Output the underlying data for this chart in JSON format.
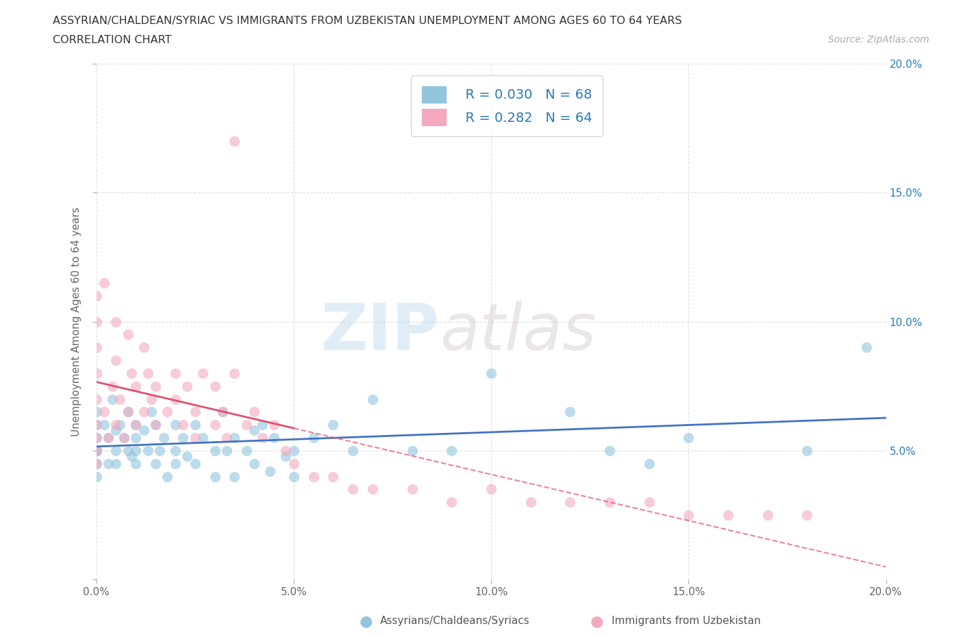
{
  "title_line1": "ASSYRIAN/CHALDEAN/SYRIAC VS IMMIGRANTS FROM UZBEKISTAN UNEMPLOYMENT AMONG AGES 60 TO 64 YEARS",
  "title_line2": "CORRELATION CHART",
  "source_text": "Source: ZipAtlas.com",
  "ylabel": "Unemployment Among Ages 60 to 64 years",
  "xlim": [
    0.0,
    0.2
  ],
  "ylim": [
    0.0,
    0.2
  ],
  "xtick_labels": [
    "0.0%",
    "5.0%",
    "10.0%",
    "15.0%",
    "20.0%"
  ],
  "xtick_vals": [
    0.0,
    0.05,
    0.1,
    0.15,
    0.2
  ],
  "ytick_vals": [
    0.0,
    0.05,
    0.1,
    0.15,
    0.2
  ],
  "right_ytick_labels": [
    "",
    "5.0%",
    "10.0%",
    "15.0%",
    "20.0%"
  ],
  "watermark_zip": "ZIP",
  "watermark_atlas": "atlas",
  "legend_R1": "R = 0.030",
  "legend_N1": "N = 68",
  "legend_R2": "R = 0.282",
  "legend_N2": "N = 64",
  "color_blue": "#92C5DE",
  "color_pink": "#F4A9BE",
  "label1": "Assyrians/Chaldeans/Syriacs",
  "label2": "Immigrants from Uzbekistan",
  "background_color": "#ffffff",
  "grid_color": "#e0e0e0",
  "title_color": "#333333",
  "blue_trend_color": "#4472C4",
  "pink_trend_color": "#E05070",
  "blue_x": [
    0.0,
    0.0,
    0.0,
    0.0,
    0.0,
    0.0,
    0.0,
    0.0,
    0.002,
    0.003,
    0.003,
    0.004,
    0.005,
    0.005,
    0.005,
    0.006,
    0.007,
    0.008,
    0.008,
    0.009,
    0.01,
    0.01,
    0.01,
    0.01,
    0.012,
    0.013,
    0.014,
    0.015,
    0.015,
    0.016,
    0.017,
    0.018,
    0.02,
    0.02,
    0.02,
    0.022,
    0.023,
    0.025,
    0.025,
    0.027,
    0.03,
    0.03,
    0.032,
    0.033,
    0.035,
    0.035,
    0.038,
    0.04,
    0.04,
    0.042,
    0.044,
    0.045,
    0.048,
    0.05,
    0.05,
    0.055,
    0.06,
    0.065,
    0.07,
    0.08,
    0.09,
    0.1,
    0.12,
    0.13,
    0.14,
    0.15,
    0.18,
    0.195
  ],
  "blue_y": [
    0.055,
    0.05,
    0.045,
    0.06,
    0.04,
    0.05,
    0.065,
    0.05,
    0.06,
    0.045,
    0.055,
    0.07,
    0.05,
    0.058,
    0.045,
    0.06,
    0.055,
    0.05,
    0.065,
    0.048,
    0.055,
    0.05,
    0.06,
    0.045,
    0.058,
    0.05,
    0.065,
    0.045,
    0.06,
    0.05,
    0.055,
    0.04,
    0.05,
    0.06,
    0.045,
    0.055,
    0.048,
    0.06,
    0.045,
    0.055,
    0.05,
    0.04,
    0.065,
    0.05,
    0.055,
    0.04,
    0.05,
    0.058,
    0.045,
    0.06,
    0.042,
    0.055,
    0.048,
    0.05,
    0.04,
    0.055,
    0.06,
    0.05,
    0.07,
    0.05,
    0.05,
    0.08,
    0.065,
    0.05,
    0.045,
    0.055,
    0.05,
    0.09
  ],
  "pink_x": [
    0.0,
    0.0,
    0.0,
    0.0,
    0.0,
    0.0,
    0.0,
    0.0,
    0.002,
    0.003,
    0.004,
    0.005,
    0.005,
    0.006,
    0.007,
    0.008,
    0.009,
    0.01,
    0.01,
    0.012,
    0.013,
    0.014,
    0.015,
    0.015,
    0.018,
    0.02,
    0.02,
    0.022,
    0.023,
    0.025,
    0.025,
    0.027,
    0.03,
    0.03,
    0.032,
    0.033,
    0.035,
    0.038,
    0.04,
    0.042,
    0.045,
    0.048,
    0.05,
    0.055,
    0.06,
    0.065,
    0.07,
    0.08,
    0.09,
    0.1,
    0.11,
    0.12,
    0.13,
    0.14,
    0.15,
    0.16,
    0.17,
    0.18,
    0.0,
    0.002,
    0.005,
    0.008,
    0.035,
    0.012
  ],
  "pink_y": [
    0.06,
    0.055,
    0.05,
    0.07,
    0.08,
    0.09,
    0.045,
    0.1,
    0.065,
    0.055,
    0.075,
    0.06,
    0.085,
    0.07,
    0.055,
    0.065,
    0.08,
    0.06,
    0.075,
    0.065,
    0.08,
    0.07,
    0.06,
    0.075,
    0.065,
    0.08,
    0.07,
    0.06,
    0.075,
    0.065,
    0.055,
    0.08,
    0.06,
    0.075,
    0.065,
    0.055,
    0.08,
    0.06,
    0.065,
    0.055,
    0.06,
    0.05,
    0.045,
    0.04,
    0.04,
    0.035,
    0.035,
    0.035,
    0.03,
    0.035,
    0.03,
    0.03,
    0.03,
    0.03,
    0.025,
    0.025,
    0.025,
    0.025,
    0.11,
    0.115,
    0.1,
    0.095,
    0.17,
    0.09
  ]
}
